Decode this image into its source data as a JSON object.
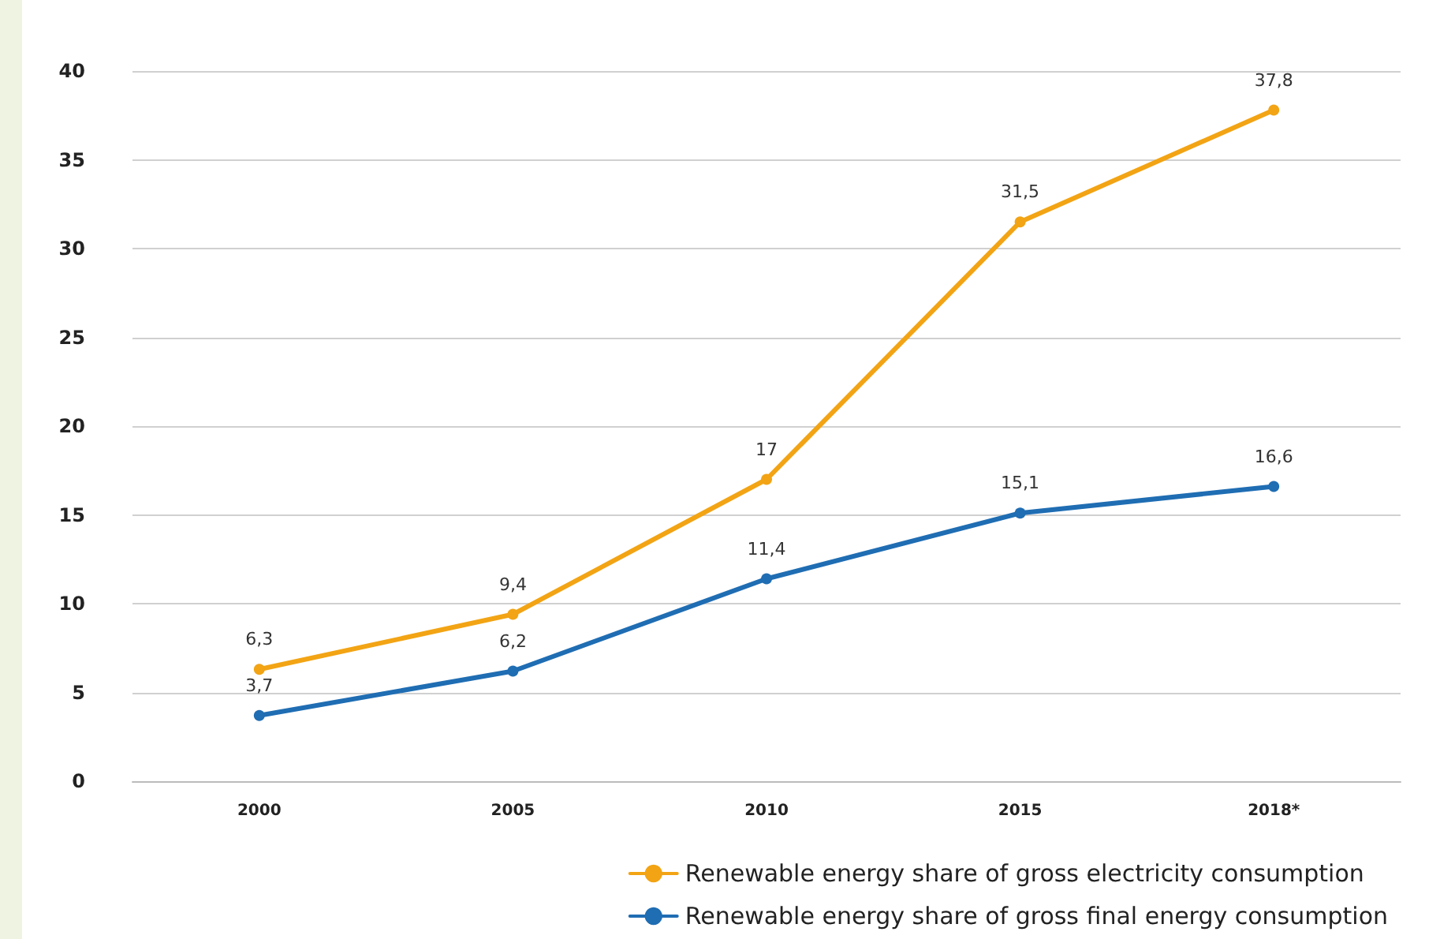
{
  "chart_data": {
    "type": "line",
    "categories": [
      "2000",
      "2005",
      "2010",
      "2015",
      "2018*"
    ],
    "series": [
      {
        "name": "Renewable energy share of gross electricity consumption",
        "color": "#f2a414",
        "values": [
          6.3,
          9.4,
          17,
          31.5,
          37.8
        ],
        "value_labels": [
          "6,3",
          "9,4",
          "17",
          "31,5",
          "37,8"
        ]
      },
      {
        "name": "Renewable energy share of gross final energy consumption",
        "color": "#1f6db3",
        "values": [
          3.7,
          6.2,
          11.4,
          15.1,
          16.6
        ],
        "value_labels": [
          "3,7",
          "6,2",
          "11,4",
          "15,1",
          "16,6"
        ]
      }
    ],
    "ylim": [
      0,
      40
    ],
    "yticks": [
      0,
      5,
      10,
      15,
      20,
      25,
      30,
      35,
      40
    ],
    "grid": "y",
    "legend": "bottom right",
    "marker": "circle",
    "line_style": "solid"
  }
}
